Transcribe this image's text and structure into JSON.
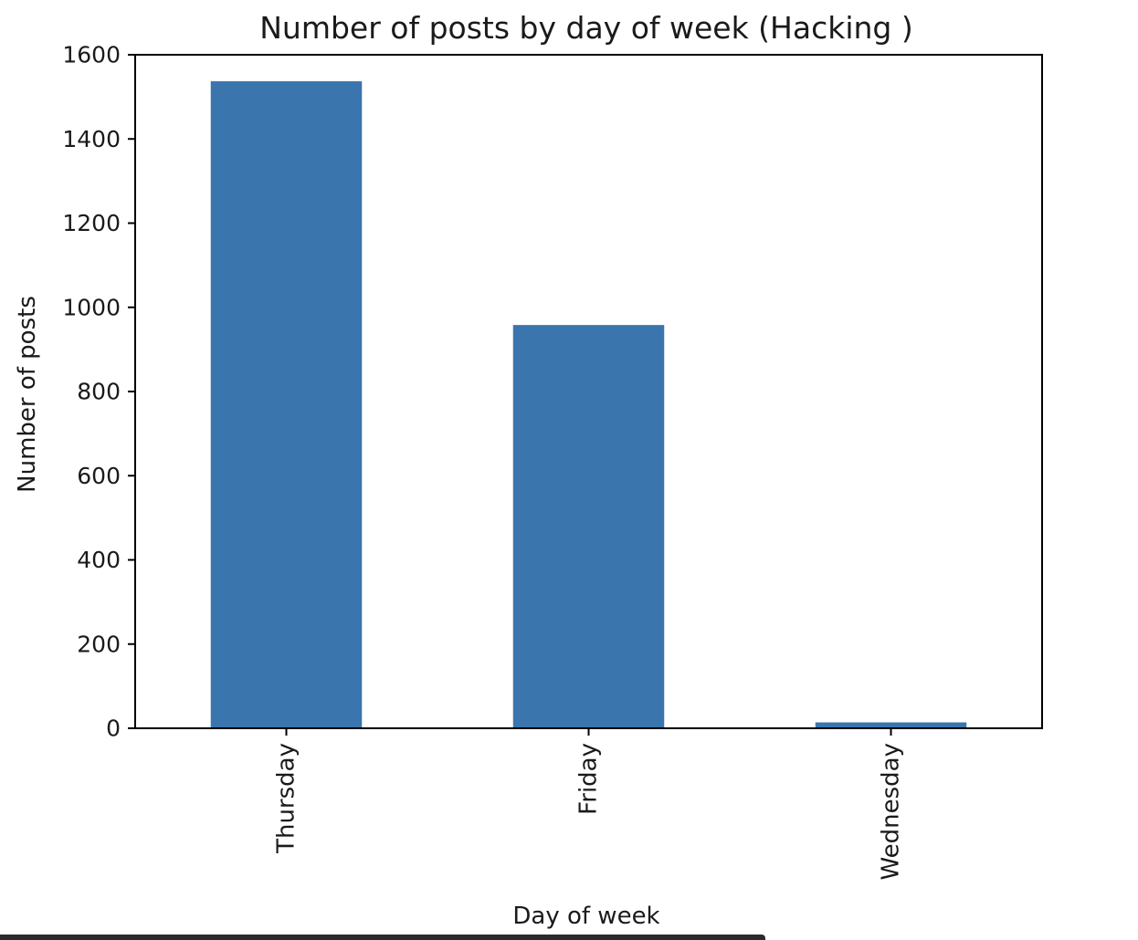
{
  "chart_data": {
    "type": "bar",
    "title": "Number of posts by day of week (Hacking )",
    "xlabel": "Day of week",
    "ylabel": "Number of posts",
    "categories": [
      "Thursday",
      "Friday",
      "Wednesday"
    ],
    "values": [
      1537,
      958,
      14
    ],
    "ylim": [
      0,
      1600
    ],
    "yticks": [
      0,
      200,
      400,
      600,
      800,
      1000,
      1200,
      1400,
      1600
    ],
    "grid": false,
    "bar_color": "#3a75ae"
  }
}
